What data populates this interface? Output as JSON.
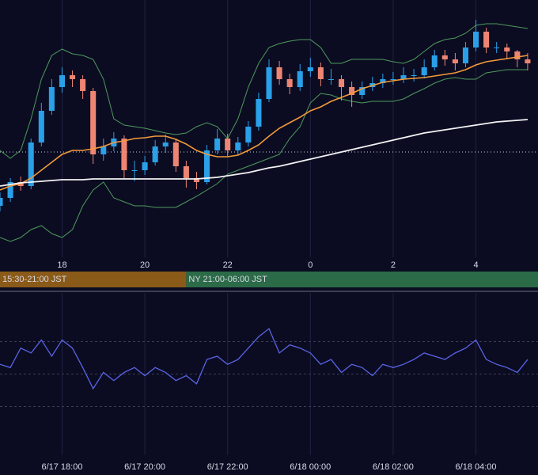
{
  "chart_data": [
    {
      "type": "candlestick",
      "x": [
        16.5,
        16.75,
        17,
        17.25,
        17.5,
        17.75,
        18,
        18.25,
        18.5,
        18.75,
        19,
        19.25,
        19.5,
        19.75,
        20,
        20.25,
        20.5,
        20.75,
        21,
        21.25,
        21.5,
        21.75,
        22,
        22.25,
        22.5,
        22.75,
        23,
        23.25,
        23.5,
        23.75,
        24,
        24.25,
        24.5,
        24.75,
        25,
        25.25,
        25.5,
        25.75,
        26,
        26.25,
        26.5,
        26.75,
        27,
        27.25,
        27.5,
        27.75,
        28,
        28.25,
        28.5,
        28.75,
        29,
        29.25
      ],
      "open": [
        65,
        75,
        95,
        90,
        145,
        185,
        215,
        230,
        225,
        210,
        130,
        140,
        150,
        110,
        110,
        120,
        140,
        145,
        115,
        100,
        95,
        135,
        150,
        135,
        145,
        165,
        200,
        240,
        225,
        215,
        235,
        240,
        225,
        225,
        215,
        205,
        215,
        220,
        225,
        225,
        230,
        230,
        240,
        255,
        250,
        245,
        265,
        285,
        265,
        265,
        260,
        250
      ],
      "high": [
        82,
        100,
        102,
        150,
        195,
        225,
        240,
        236,
        230,
        214,
        150,
        158,
        154,
        122,
        128,
        148,
        155,
        150,
        122,
        108,
        142,
        162,
        156,
        152,
        172,
        208,
        250,
        248,
        232,
        244,
        252,
        246,
        238,
        230,
        222,
        222,
        228,
        232,
        234,
        240,
        238,
        250,
        262,
        262,
        258,
        272,
        300,
        290,
        272,
        270,
        262,
        258
      ],
      "low": [
        58,
        70,
        84,
        86,
        140,
        180,
        208,
        215,
        200,
        118,
        122,
        134,
        100,
        96,
        104,
        116,
        132,
        108,
        88,
        86,
        92,
        130,
        128,
        130,
        140,
        160,
        196,
        218,
        206,
        210,
        228,
        216,
        218,
        198,
        190,
        200,
        210,
        214,
        218,
        220,
        222,
        226,
        236,
        242,
        236,
        240,
        260,
        258,
        258,
        250,
        240,
        236
      ],
      "close": [
        75,
        95,
        90,
        145,
        185,
        215,
        230,
        225,
        210,
        130,
        140,
        150,
        110,
        110,
        120,
        140,
        145,
        115,
        100,
        95,
        135,
        150,
        135,
        145,
        165,
        200,
        240,
        225,
        215,
        235,
        240,
        225,
        225,
        215,
        205,
        215,
        220,
        225,
        225,
        230,
        230,
        240,
        255,
        250,
        245,
        265,
        285,
        265,
        265,
        260,
        250,
        245
      ],
      "up_color": "#2aa0e8",
      "down_color": "#ee8572",
      "overlays": [
        {
          "color": "#f39a3a",
          "width": 1.6,
          "values": [
            85,
            90,
            93,
            100,
            110,
            120,
            130,
            135,
            135,
            137,
            140,
            145,
            147,
            150,
            151,
            153,
            153,
            149,
            143,
            135,
            130,
            127,
            127,
            129,
            135,
            142,
            153,
            163,
            170,
            177,
            185,
            190,
            197,
            202,
            207,
            213,
            217,
            221,
            223,
            225,
            226,
            227,
            229,
            231,
            233,
            237,
            243,
            247,
            249,
            251,
            253,
            255
          ]
        },
        {
          "color": "#f2f2f2",
          "width": 1.8,
          "values": [
            90,
            92,
            94,
            95,
            96,
            97,
            98,
            98,
            98,
            99,
            99,
            99,
            99,
            99,
            99,
            99,
            99,
            99,
            99,
            99,
            100,
            101,
            103,
            105,
            107,
            110,
            113,
            115,
            118,
            121,
            124,
            127,
            130,
            133,
            136,
            139,
            142,
            145,
            148,
            151,
            154,
            157,
            159,
            161,
            163,
            165,
            167,
            169,
            171,
            172,
            173,
            174
          ]
        },
        {
          "color": "#4f9a5c",
          "width": 1,
          "values": [
            135,
            125,
            135,
            175,
            225,
            255,
            263,
            257,
            255,
            250,
            225,
            175,
            167,
            165,
            163,
            160,
            157,
            155,
            157,
            165,
            170,
            165,
            150,
            175,
            215,
            245,
            265,
            270,
            273,
            275,
            275,
            265,
            245,
            245,
            250,
            250,
            250,
            250,
            247,
            245,
            250,
            260,
            270,
            275,
            277,
            283,
            293,
            295,
            295,
            293,
            291,
            289
          ]
        },
        {
          "color": "#4f9a5c",
          "width": 1,
          "values": [
            25,
            20,
            25,
            35,
            40,
            30,
            25,
            35,
            65,
            85,
            95,
            75,
            70,
            65,
            65,
            63,
            63,
            63,
            70,
            77,
            85,
            93,
            105,
            110,
            115,
            120,
            125,
            130,
            150,
            165,
            195,
            207,
            205,
            200,
            197,
            195,
            197,
            197,
            197,
            200,
            207,
            213,
            220,
            225,
            227,
            225,
            225,
            233,
            235,
            237,
            237,
            237
          ]
        }
      ],
      "price_line": 133,
      "xlim": [
        16.5,
        29.5
      ],
      "ylim": [
        0,
        325
      ],
      "xticks": [
        18,
        20,
        22,
        {
          "value": 24,
          "label": "0"
        },
        {
          "value": 26,
          "label": "2"
        },
        {
          "value": 28,
          "label": "4"
        }
      ],
      "sessions": [
        {
          "label": "15:30-21:00 JST",
          "start": 15.5,
          "end": 21,
          "color": "#8a5a18"
        },
        {
          "label": "NY 21:00-06:00 JST",
          "start": 21,
          "end": 30,
          "color": "#2b6b47"
        }
      ]
    },
    {
      "type": "line",
      "x": [
        16.5,
        16.75,
        17,
        17.25,
        17.5,
        17.75,
        18,
        18.25,
        18.5,
        18.75,
        19,
        19.25,
        19.5,
        19.75,
        20,
        20.25,
        20.5,
        20.75,
        21,
        21.25,
        21.5,
        21.75,
        22,
        22.25,
        22.5,
        22.75,
        23,
        23.25,
        23.5,
        23.75,
        24,
        24.25,
        24.5,
        24.75,
        25,
        25.25,
        25.5,
        25.75,
        26,
        26.25,
        26.5,
        26.75,
        27,
        27.25,
        27.5,
        27.75,
        28,
        28.25,
        28.5,
        28.75,
        29,
        29.25
      ],
      "values": [
        56,
        54,
        66,
        63,
        71,
        61,
        71,
        66,
        54,
        41,
        51,
        46,
        51,
        54,
        49,
        54,
        51,
        46,
        49,
        44,
        59,
        61,
        56,
        59,
        66,
        73,
        78,
        63,
        68,
        66,
        63,
        56,
        59,
        51,
        56,
        54,
        49,
        56,
        54,
        56,
        59,
        63,
        61,
        59,
        63,
        66,
        71,
        59,
        56,
        54,
        51,
        59
      ],
      "color": "#5a64e6",
      "levels": [
        70,
        50,
        30
      ],
      "xlim": [
        16.5,
        29.5
      ],
      "ylim": [
        0,
        100
      ],
      "xticks": [
        {
          "value": 18,
          "label": "6/17 18:00"
        },
        {
          "value": 20,
          "label": "6/17 20:00"
        },
        {
          "value": 22,
          "label": "6/17 22:00"
        },
        {
          "value": 24,
          "label": "6/18 00:00"
        },
        {
          "value": 26,
          "label": "6/18 02:00"
        },
        {
          "value": 28,
          "label": "6/18 04:00"
        }
      ]
    }
  ]
}
